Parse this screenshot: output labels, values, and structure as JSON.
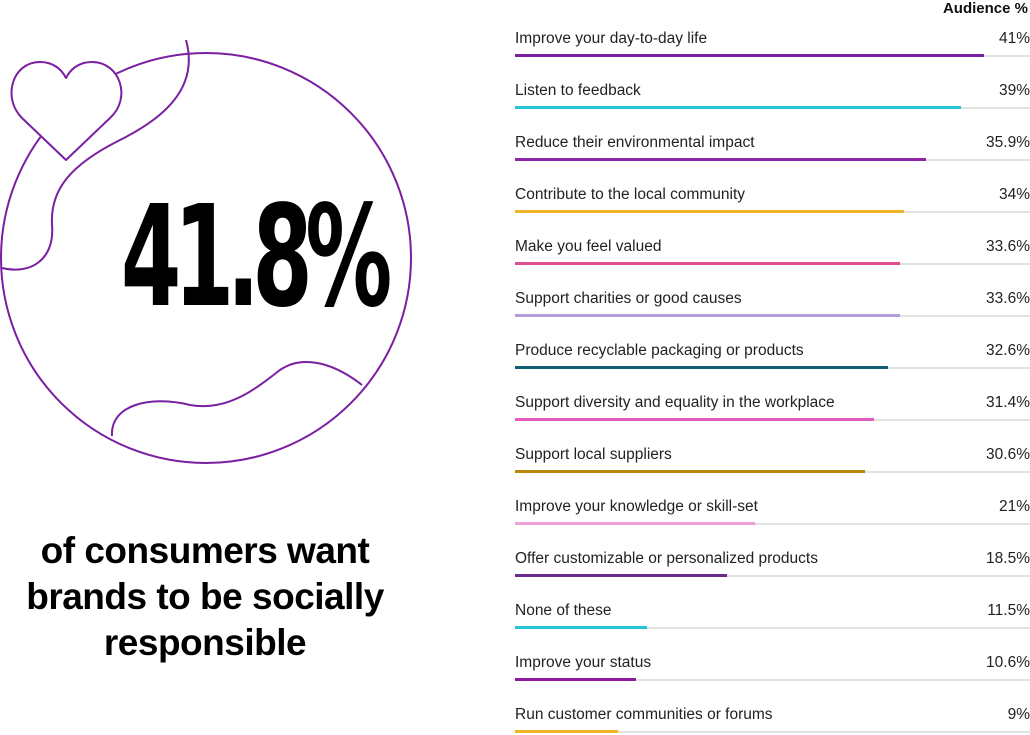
{
  "stat": {
    "value": "41.8%",
    "caption_lines": [
      "of consumers want",
      "brands to be socially",
      "responsible"
    ]
  },
  "icons": {
    "heart": "heart-icon",
    "globe": "globe-outline"
  },
  "colors": {
    "accent_purple": "#7b1fa2"
  },
  "chart_data": {
    "type": "bar",
    "orientation": "horizontal",
    "value_header": "Audience %",
    "xlim": [
      0,
      45
    ],
    "categories": [
      "Improve your day-to-day life",
      "Listen to feedback",
      "Reduce their environmental impact",
      "Contribute to the local community",
      "Make you feel valued",
      "Support charities or good causes",
      "Produce recyclable packaging or products",
      "Support diversity and equality in the workplace",
      "Support local suppliers",
      "Improve your knowledge or skill-set",
      "Offer customizable or personalized products",
      "None of these",
      "Improve your status",
      "Run customer communities or forums"
    ],
    "values": [
      41,
      39,
      35.9,
      34,
      33.6,
      33.6,
      32.6,
      31.4,
      30.6,
      21,
      18.5,
      11.5,
      10.6,
      9
    ],
    "value_labels": [
      "41%",
      "39%",
      "35.9%",
      "34%",
      "33.6%",
      "33.6%",
      "32.6%",
      "31.4%",
      "30.6%",
      "21%",
      "18.5%",
      "11.5%",
      "10.6%",
      "9%"
    ],
    "bar_colors": [
      "#7b1fa2",
      "#26c6da",
      "#8e24aa",
      "#f0b429",
      "#e04e8f",
      "#b39ddb",
      "#0d5f73",
      "#e35bc1",
      "#b8860b",
      "#f0a0d8",
      "#6a2c8c",
      "#26c6da",
      "#8e1b9b",
      "#f0b429"
    ]
  }
}
